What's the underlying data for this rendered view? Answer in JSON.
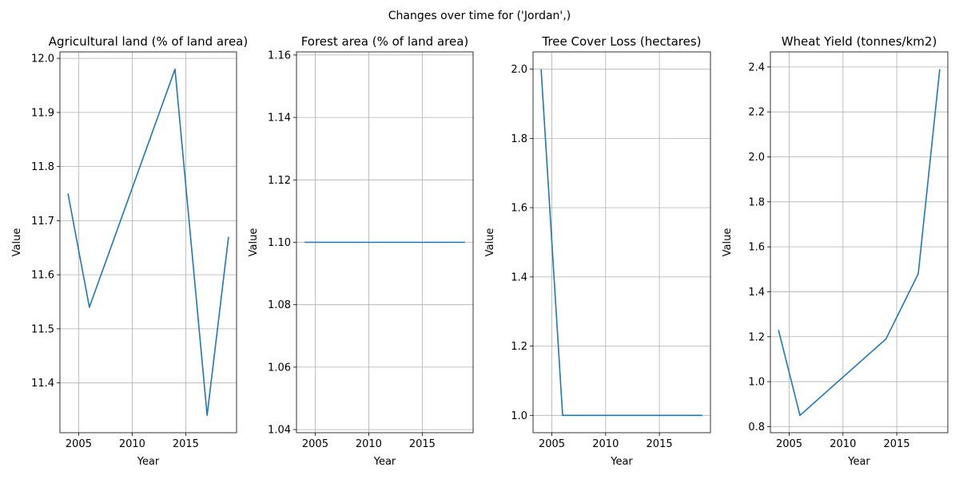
{
  "figure": {
    "suptitle": "Changes over time for ('Jordan',)"
  },
  "chart_data": [
    {
      "type": "line",
      "title": "Agricultural land (% of land area)",
      "xlabel": "Year",
      "ylabel": "Value",
      "grid": true,
      "line_color": "#1f77b4",
      "x": [
        2004,
        2006,
        2014,
        2017,
        2019
      ],
      "y": [
        11.75,
        11.54,
        11.98,
        11.34,
        11.67
      ],
      "xlim": [
        2003.25,
        2019.75
      ],
      "ylim": [
        11.308,
        12.012
      ],
      "xticks": [
        2005,
        2010,
        2015
      ],
      "yticks": [
        11.4,
        11.5,
        11.6,
        11.7,
        11.8,
        11.9,
        12.0
      ],
      "ytick_labels": [
        "11.4",
        "11.5",
        "11.6",
        "11.7",
        "11.8",
        "11.9",
        "12.0"
      ]
    },
    {
      "type": "line",
      "title": "Forest area (% of land area)",
      "xlabel": "Year",
      "ylabel": "Value",
      "grid": true,
      "line_color": "#1f77b4",
      "x": [
        2004,
        2019
      ],
      "y": [
        1.1,
        1.1
      ],
      "xlim": [
        2003.25,
        2019.75
      ],
      "ylim": [
        1.039,
        1.161
      ],
      "xticks": [
        2005,
        2010,
        2015
      ],
      "yticks": [
        1.04,
        1.06,
        1.08,
        1.1,
        1.12,
        1.14,
        1.16
      ],
      "ytick_labels": [
        "1.04",
        "1.06",
        "1.08",
        "1.10",
        "1.12",
        "1.14",
        "1.16"
      ]
    },
    {
      "type": "line",
      "title": "Tree Cover Loss (hectares)",
      "xlabel": "Year",
      "ylabel": "Value",
      "grid": true,
      "line_color": "#1f77b4",
      "x": [
        2004,
        2006,
        2019
      ],
      "y": [
        2.0,
        1.0,
        1.0
      ],
      "xlim": [
        2003.25,
        2019.75
      ],
      "ylim": [
        0.95,
        2.05
      ],
      "xticks": [
        2005,
        2010,
        2015
      ],
      "yticks": [
        1.0,
        1.2,
        1.4,
        1.6,
        1.8,
        2.0
      ],
      "ytick_labels": [
        "1.0",
        "1.2",
        "1.4",
        "1.6",
        "1.8",
        "2.0"
      ]
    },
    {
      "type": "line",
      "title": "Wheat Yield (tonnes/km2)",
      "xlabel": "Year",
      "ylabel": "Value",
      "grid": true,
      "line_color": "#1f77b4",
      "x": [
        2004,
        2006,
        2014,
        2017,
        2019
      ],
      "y": [
        1.23,
        0.85,
        1.19,
        1.48,
        2.39
      ],
      "xlim": [
        2003.25,
        2019.75
      ],
      "ylim": [
        0.773,
        2.467
      ],
      "xticks": [
        2005,
        2010,
        2015
      ],
      "yticks": [
        0.8,
        1.0,
        1.2,
        1.4,
        1.6,
        1.8,
        2.0,
        2.2,
        2.4
      ],
      "ytick_labels": [
        "0.8",
        "1.0",
        "1.2",
        "1.4",
        "1.6",
        "1.8",
        "2.0",
        "2.2",
        "2.4"
      ]
    }
  ]
}
